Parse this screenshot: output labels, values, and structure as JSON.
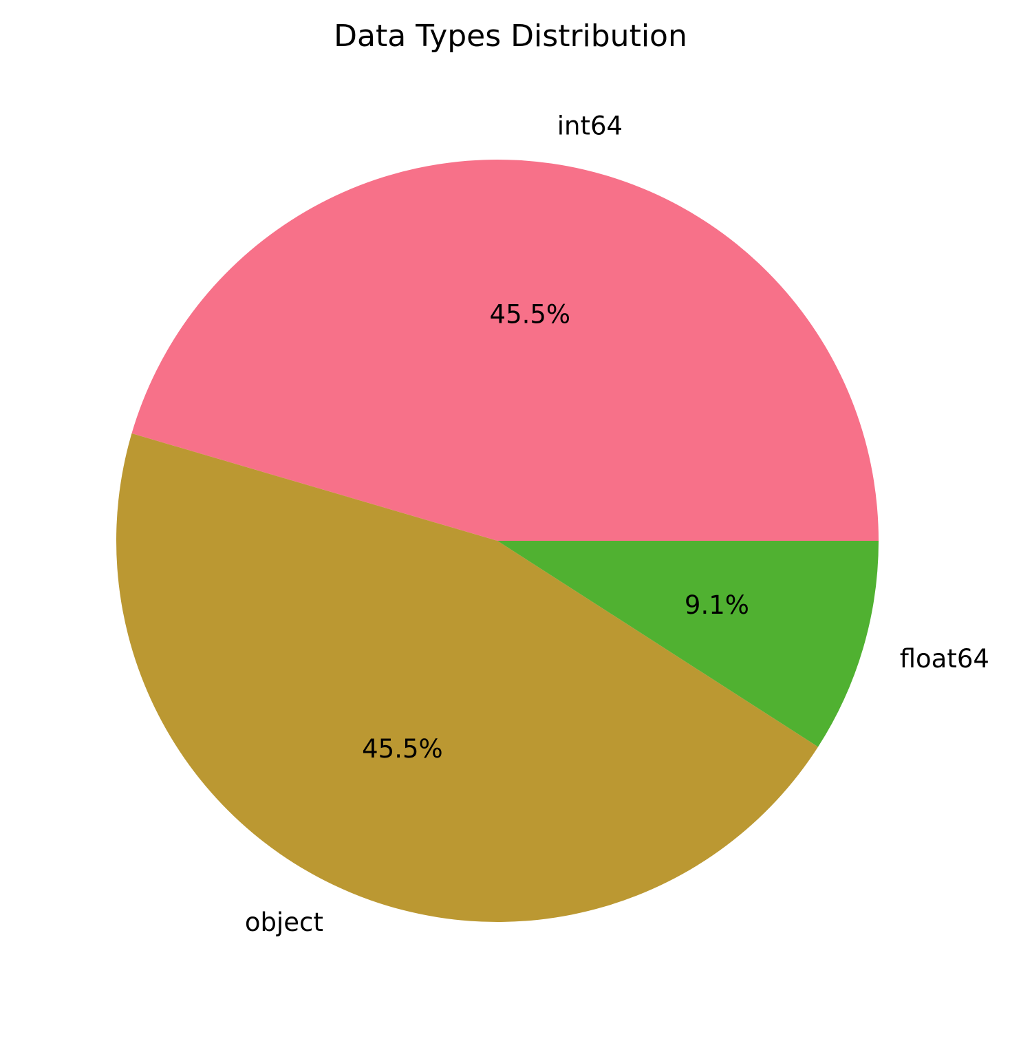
{
  "chart_data": {
    "type": "pie",
    "title": "Data Types Distribution",
    "start_angle_deg": 0,
    "direction": "counterclockwise",
    "slices": [
      {
        "label": "int64",
        "value": 5,
        "pct_label": "45.5%",
        "color": "#f77189"
      },
      {
        "label": "object",
        "value": 5,
        "pct_label": "45.5%",
        "color": "#bb9832"
      },
      {
        "label": "float64",
        "value": 1,
        "pct_label": "9.1%",
        "color": "#50b131"
      }
    ]
  }
}
